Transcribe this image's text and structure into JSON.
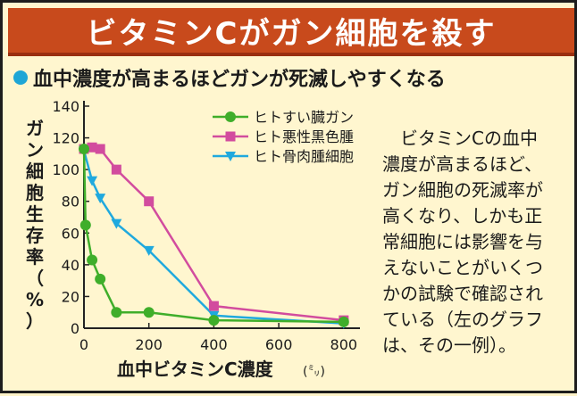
{
  "title": "ビタミンCがガン細胞を殺す",
  "subtitle": "血中濃度が高まるほどガンが死滅しやすくなる",
  "body_lines": [
    "　ビタミンCの血中",
    "濃度が高まるほど、",
    "ガン細胞の死滅率が",
    "高くなり、しかも正",
    "常細胞には影響を与",
    "えないことがいくつ",
    "かの試験で確認され",
    "ている（左のグラフ",
    "は、その一例）。"
  ],
  "colors": {
    "title_bg": "#c84a1c",
    "pancreatic": "#3fae2a",
    "melanoma": "#d24c9e",
    "osteosarcoma": "#1fa9de"
  },
  "chart_data": {
    "type": "line",
    "xlabel": "血中ビタミンC濃度",
    "xlabel_unit": "(㍉)",
    "ylabel": "ガン細胞生存率（%）",
    "xlim": [
      0,
      850
    ],
    "ylim": [
      0,
      140
    ],
    "x_ticks": [
      0,
      200,
      400,
      600,
      800
    ],
    "y_ticks": [
      0,
      20,
      40,
      60,
      80,
      100,
      120,
      140
    ],
    "legend_position": "top-right",
    "series": [
      {
        "name": "ヒトすい臓ガン",
        "color": "#3fae2a",
        "marker": "circle",
        "x": [
          0,
          5,
          25,
          50,
          100,
          200,
          400,
          800
        ],
        "y": [
          113,
          65,
          43,
          31,
          10,
          10,
          5,
          4
        ]
      },
      {
        "name": "ヒト悪性黒色腫",
        "color": "#d24c9e",
        "marker": "square",
        "x": [
          0,
          25,
          50,
          100,
          200,
          400,
          800
        ],
        "y": [
          113,
          114,
          113,
          100,
          80,
          14,
          5
        ]
      },
      {
        "name": "ヒト骨肉腫細胞",
        "color": "#1fa9de",
        "marker": "triangle-down",
        "x": [
          0,
          25,
          50,
          100,
          200,
          400,
          800
        ],
        "y": [
          112,
          93,
          82,
          66,
          49,
          8,
          3
        ]
      }
    ]
  }
}
